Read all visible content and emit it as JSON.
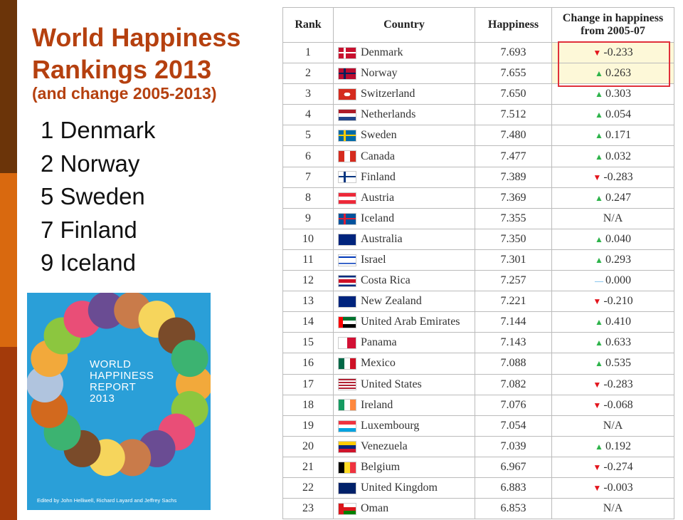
{
  "title": "World Happiness Rankings 2013",
  "subtitle": "(and change 2005-2013)",
  "highlights": [
    "1 Denmark",
    "2 Norway",
    "5 Sweden",
    "7 Finland",
    "9 Iceland"
  ],
  "cover": {
    "title_lines": [
      "WORLD",
      "HAPPINESS",
      "REPORT",
      "2013"
    ],
    "editors": "Edited by John Helliwell, Richard Layard and Jeffrey Sachs"
  },
  "table": {
    "headers": [
      "Rank",
      "Country",
      "Happiness",
      "Change in happiness from 2005-07"
    ],
    "rows": [
      [
        1,
        "Denmark",
        "7.693",
        "-0.233"
      ],
      [
        2,
        "Norway",
        "7.655",
        "0.263"
      ],
      [
        3,
        "Switzerland",
        "7.650",
        "0.303"
      ],
      [
        4,
        "Netherlands",
        "7.512",
        "0.054"
      ],
      [
        5,
        "Sweden",
        "7.480",
        "0.171"
      ],
      [
        6,
        "Canada",
        "7.477",
        "0.032"
      ],
      [
        7,
        "Finland",
        "7.389",
        "-0.283"
      ],
      [
        8,
        "Austria",
        "7.369",
        "0.247"
      ],
      [
        9,
        "Iceland",
        "7.355",
        "N/A"
      ],
      [
        10,
        "Australia",
        "7.350",
        "0.040"
      ],
      [
        11,
        "Israel",
        "7.301",
        "0.293"
      ],
      [
        12,
        "Costa Rica",
        "7.257",
        "0.000"
      ],
      [
        13,
        "New Zealand",
        "7.221",
        "-0.210"
      ],
      [
        14,
        "United Arab Emirates",
        "7.144",
        "0.410"
      ],
      [
        15,
        "Panama",
        "7.143",
        "0.633"
      ],
      [
        16,
        "Mexico",
        "7.088",
        "0.535"
      ],
      [
        17,
        "United States",
        "7.082",
        "-0.283"
      ],
      [
        18,
        "Ireland",
        "7.076",
        "-0.068"
      ],
      [
        19,
        "Luxembourg",
        "7.054",
        "N/A"
      ],
      [
        20,
        "Venezuela",
        "7.039",
        "0.192"
      ],
      [
        21,
        "Belgium",
        "6.967",
        "-0.274"
      ],
      [
        22,
        "United Kingdom",
        "6.883",
        "-0.003"
      ],
      [
        23,
        "Oman",
        "6.853",
        "N/A"
      ]
    ]
  }
}
